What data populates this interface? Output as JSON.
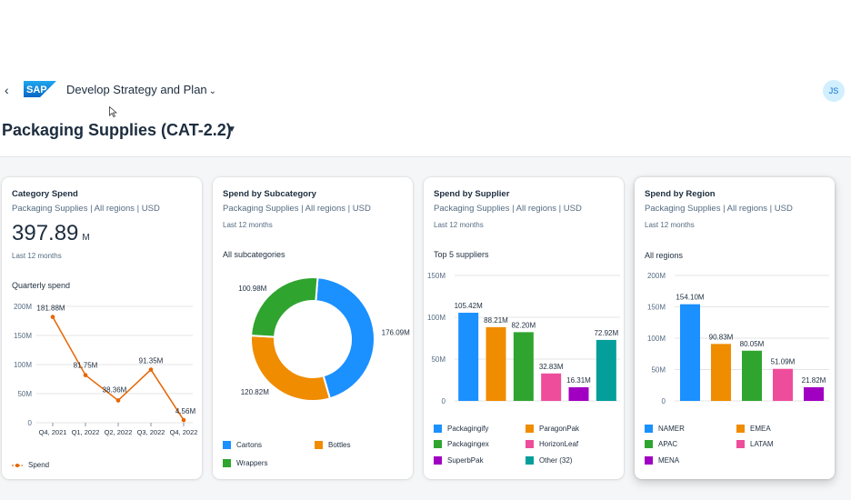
{
  "app": {
    "back_label": "‹",
    "logo_text": "SAP",
    "title": "Develop Strategy and Plan",
    "avatar_initials": "JS"
  },
  "page": {
    "title": "Packaging Supplies (CAT-2.2)"
  },
  "colors": {
    "blue": "#1b90ff",
    "orange": "#f08c00",
    "green": "#2fa52f",
    "pink": "#ee4d9b",
    "purple": "#a100c2",
    "teal": "#049f9a",
    "line": "#e76500",
    "accent": "#0a6ed1"
  },
  "cards": [
    {
      "title": "Category Spend",
      "subtitle": "Packaging Supplies | All regions | USD",
      "kpi_value": "397.89",
      "kpi_unit": "M",
      "period": "Last 12 months",
      "section": "Quarterly spend",
      "legend": [
        "Spend"
      ]
    },
    {
      "title": "Spend by Subcategory",
      "subtitle": "Packaging Supplies | All regions | USD",
      "period": "Last 12 months",
      "section": "All subcategories",
      "legend": [
        "Cartons",
        "Bottles",
        "Wrappers"
      ]
    },
    {
      "title": "Spend by Supplier",
      "subtitle": "Packaging Supplies | All regions | USD",
      "period": "Last 12 months",
      "section": "Top 5 suppliers",
      "legend": [
        "Packagingify",
        "ParagonPak",
        "Packagingex",
        "HorizonLeaf",
        "SuperbPak",
        "Other (32)"
      ]
    },
    {
      "title": "Spend by Region",
      "subtitle": "Packaging Supplies | All regions | USD",
      "period": "Last 12 months",
      "section": "All regions",
      "legend": [
        "NAMER",
        "EMEA",
        "APAC",
        "LATAM",
        "MENA"
      ]
    }
  ],
  "chart_data": [
    {
      "type": "line",
      "categories": [
        "Q4, 2021",
        "Q1, 2022",
        "Q2, 2022",
        "Q3, 2022",
        "Q4, 2022"
      ],
      "series": [
        {
          "name": "Spend",
          "values": [
            181.88,
            81.75,
            38.36,
            91.35,
            4.56
          ]
        }
      ],
      "data_labels": [
        "181.88M",
        "81.75M",
        "38.36M",
        "91.35M",
        "4.56M"
      ],
      "y_ticks": [
        "0",
        "50M",
        "100M",
        "150M",
        "200M"
      ],
      "ylim": [
        0,
        200
      ],
      "grid": true
    },
    {
      "type": "pie",
      "categories": [
        "Cartons",
        "Bottles",
        "Wrappers"
      ],
      "values": [
        176.09,
        120.82,
        100.98
      ],
      "data_labels": [
        "176.09M",
        "120.82M",
        "100.98M"
      ]
    },
    {
      "type": "bar",
      "categories": [
        "Packagingify",
        "ParagonPak",
        "Packagingex",
        "HorizonLeaf",
        "SuperbPak",
        "Other (32)"
      ],
      "values": [
        105.42,
        88.21,
        82.2,
        32.83,
        16.31,
        72.92
      ],
      "data_labels": [
        "105.42M",
        "88.21M",
        "82.20M",
        "32.83M",
        "16.31M",
        "72.92M"
      ],
      "y_ticks": [
        "0",
        "50M",
        "100M",
        "150M"
      ],
      "ylim": [
        0,
        150
      ],
      "grid": true
    },
    {
      "type": "bar",
      "categories": [
        "NAMER",
        "EMEA",
        "APAC",
        "LATAM",
        "MENA"
      ],
      "values": [
        154.1,
        90.83,
        80.05,
        51.09,
        21.82
      ],
      "data_labels": [
        "154.10M",
        "90.83M",
        "80.05M",
        "51.09M",
        "21.82M"
      ],
      "y_ticks": [
        "0",
        "50M",
        "100M",
        "150M",
        "200M"
      ],
      "ylim": [
        0,
        200
      ],
      "grid": true
    }
  ]
}
